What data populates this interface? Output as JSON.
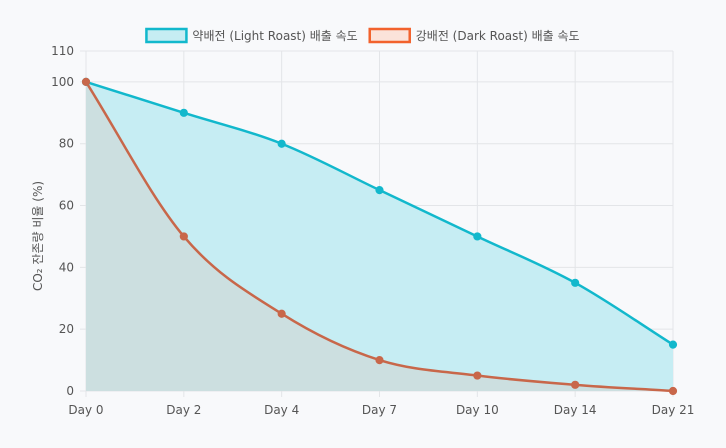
{
  "chart_data": {
    "type": "line",
    "title": "",
    "xlabel": "",
    "ylabel": "CO₂ 잔존량 비율 (%)",
    "categories": [
      "Day 0",
      "Day 2",
      "Day 4",
      "Day 7",
      "Day 10",
      "Day 14",
      "Day 21"
    ],
    "ylim": [
      0,
      110
    ],
    "yticks": [
      0,
      20,
      40,
      60,
      80,
      100,
      110
    ],
    "grid": true,
    "legend_position": "top",
    "filled": true,
    "series": [
      {
        "name": "약배전 (Light Roast) 배출 속도",
        "values": [
          100,
          90,
          80,
          65,
          50,
          35,
          15
        ],
        "color": "#12b8cc",
        "fill": "#c6edf3"
      },
      {
        "name": "강배전 (Dark Roast) 배출 속도",
        "values": [
          100,
          50,
          25,
          10,
          5,
          2,
          0
        ],
        "color": "#c8674a",
        "fill": "#ccdfe0",
        "legend_color": "#f2622d",
        "legend_fill": "#fbe3da"
      }
    ]
  }
}
